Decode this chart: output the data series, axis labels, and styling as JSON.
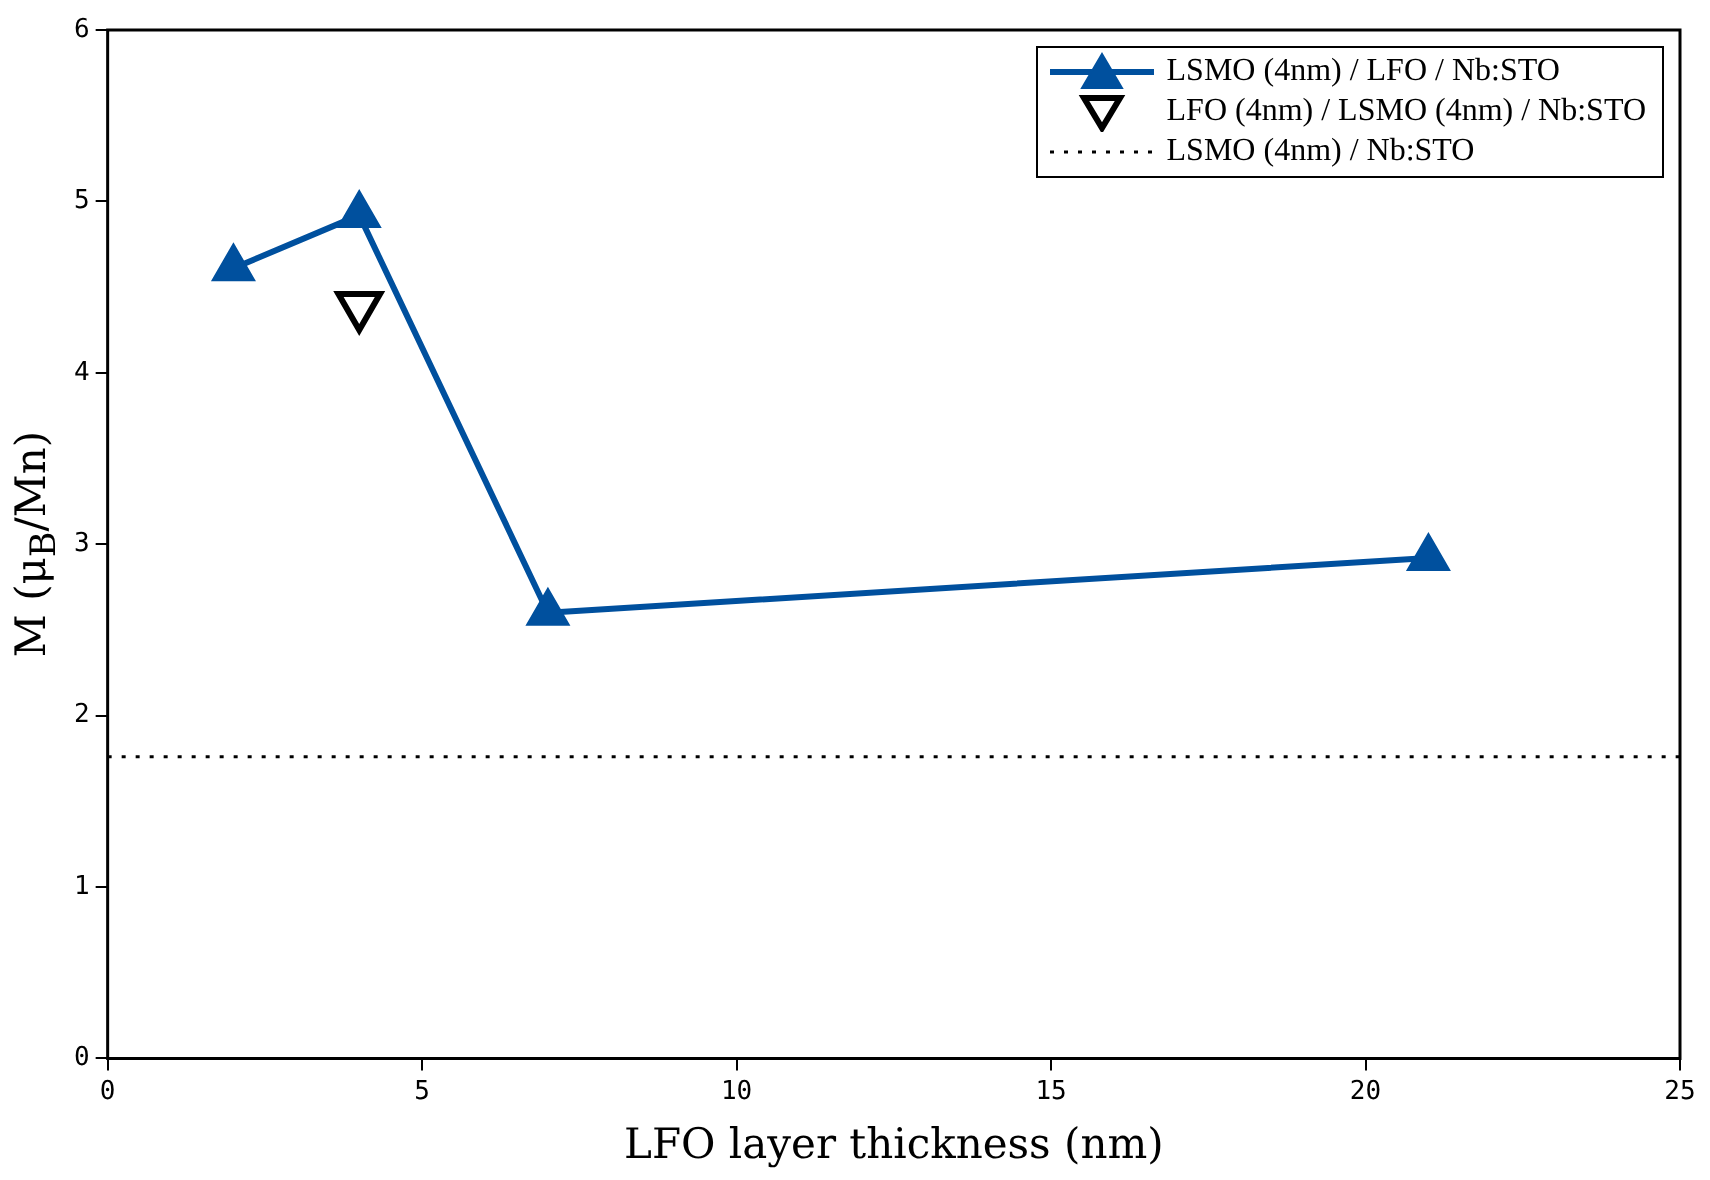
{
  "chart_data": {
    "type": "line",
    "xlabel": "LFO layer thickness (nm)",
    "ylabel": "M (μ$_{B}$/Mn)",
    "xlim": [
      0,
      25
    ],
    "xticks": [
      0,
      5,
      10,
      15,
      20,
      25
    ],
    "ylim": [
      0,
      6
    ],
    "yticks": [
      0,
      1,
      2,
      3,
      4,
      5,
      6
    ],
    "grid": false,
    "legend": "top right",
    "series": [
      {
        "name": "LSMO (4nm) / LFO / Nb:STO",
        "type": "line",
        "color": "#00509e",
        "marker": "triangle",
        "line_style": "solid",
        "x": [
          2,
          4,
          7,
          21
        ],
        "values": [
          4.61,
          4.92,
          2.6,
          2.92
        ]
      },
      {
        "name": "LFO (4nm) / LSMO (4nm) / Nb:STO",
        "type": "scatter",
        "color": "#000000",
        "marker": "triangle_down",
        "x": [
          4
        ],
        "values": [
          4.39
        ]
      },
      {
        "name": "LSMO (4nm) / Nb:STO",
        "type": "line",
        "color": "#000000",
        "marker": "none",
        "line_style": "dotted",
        "x": [
          0,
          25
        ],
        "values": [
          1.76,
          1.76
        ]
      }
    ]
  }
}
